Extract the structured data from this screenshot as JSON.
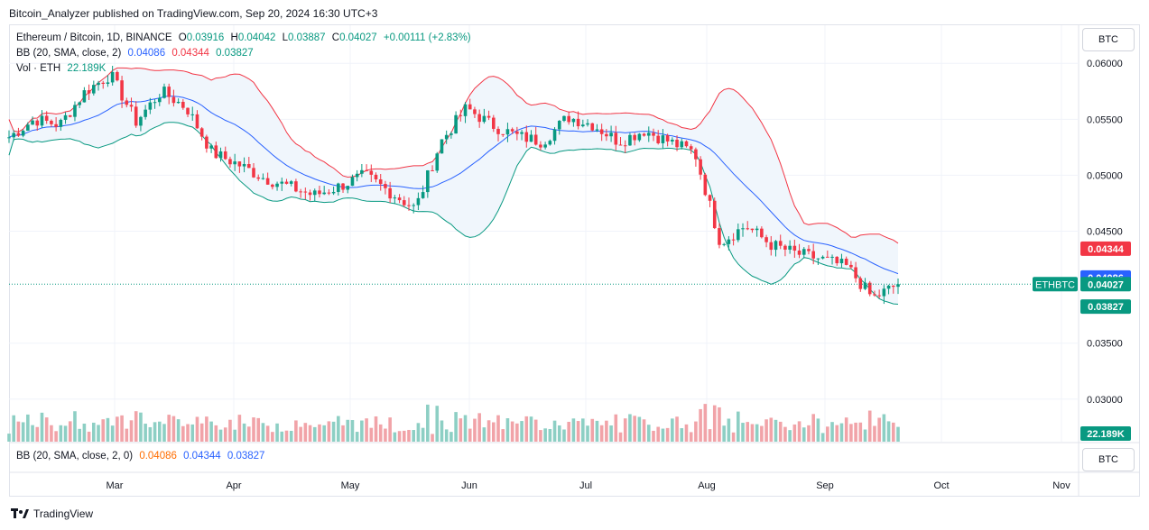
{
  "header": {
    "published": "Bitcoin_Analyzer published on TradingView.com, Sep 20, 2024 16:30 UTC+3"
  },
  "legend": {
    "symbol": "Ethereum / Bitcoin, 1D, BINANCE",
    "o_label": "O",
    "o": "0.03916",
    "h_label": "H",
    "h": "0.04042",
    "l_label": "L",
    "l": "0.03887",
    "c_label": "C",
    "c": "0.04027",
    "change": "+0.00111 (+2.83%)",
    "bb_label": "BB (20, SMA, close, 2)",
    "bb_basis": "0.04086",
    "bb_upper": "0.04344",
    "bb_lower": "0.03827",
    "vol_label": "Vol · ETH",
    "vol_value": "22.189K"
  },
  "lower_legend": {
    "label": "BB (20, SMA, close, 2, 0)",
    "basis": "0.04086",
    "upper": "0.04344",
    "lower": "0.03827"
  },
  "buttons": {
    "currency_top": "BTC",
    "currency_bottom": "BTC"
  },
  "footer": {
    "brand": "TradingView"
  },
  "colors": {
    "up": "#089981",
    "down": "#f23645",
    "basis": "#2962ff",
    "upper": "#f23645",
    "lower": "#089981",
    "band_fill": "#f0f6fc",
    "vol_up": "#8dcfc4",
    "vol_down": "#f1a3a8"
  },
  "chart_data": {
    "type": "candlestick",
    "title": "Ethereum / Bitcoin, 1D, BINANCE",
    "y_ticks": [
      "0.06000",
      "0.05500",
      "0.05000",
      "0.04500",
      "0.03500",
      "0.03000"
    ],
    "ylim": [
      0.0262,
      0.0634
    ],
    "x_ticks": [
      "Mar",
      "Apr",
      "May",
      "Jun",
      "Jul",
      "Aug",
      "Sep",
      "Oct",
      "Nov"
    ],
    "price_labels": {
      "upper": "0.04344",
      "basis": "0.04086",
      "last_symbol": "ETHBTC",
      "last": "0.04027",
      "lower": "0.03827",
      "volume": "22.189K"
    },
    "close_series": [
      {
        "date": "Feb 05",
        "close": 0.0534
      },
      {
        "date": "Feb 12",
        "close": 0.055
      },
      {
        "date": "Feb 19",
        "close": 0.0545
      },
      {
        "date": "Feb 26",
        "close": 0.0575
      },
      {
        "date": "Mar 04",
        "close": 0.059
      },
      {
        "date": "Mar 08",
        "close": 0.0548
      },
      {
        "date": "Mar 12",
        "close": 0.0575
      },
      {
        "date": "Mar 18",
        "close": 0.056
      },
      {
        "date": "Mar 25",
        "close": 0.052
      },
      {
        "date": "Apr 01",
        "close": 0.051
      },
      {
        "date": "Apr 08",
        "close": 0.0498
      },
      {
        "date": "Apr 15",
        "close": 0.049
      },
      {
        "date": "Apr 22",
        "close": 0.0482
      },
      {
        "date": "Apr 29",
        "close": 0.049
      },
      {
        "date": "May 06",
        "close": 0.05
      },
      {
        "date": "May 13",
        "close": 0.0485
      },
      {
        "date": "May 20",
        "close": 0.047
      },
      {
        "date": "May 23",
        "close": 0.053
      },
      {
        "date": "May 27",
        "close": 0.056
      },
      {
        "date": "Jun 03",
        "close": 0.0545
      },
      {
        "date": "Jun 10",
        "close": 0.0535
      },
      {
        "date": "Jun 17",
        "close": 0.053
      },
      {
        "date": "Jun 24",
        "close": 0.0552
      },
      {
        "date": "Jul 01",
        "close": 0.0545
      },
      {
        "date": "Jul 08",
        "close": 0.053
      },
      {
        "date": "Jul 15",
        "close": 0.054
      },
      {
        "date": "Jul 22",
        "close": 0.053
      },
      {
        "date": "Jul 29",
        "close": 0.052
      },
      {
        "date": "Aug 05",
        "close": 0.044
      },
      {
        "date": "Aug 12",
        "close": 0.0455
      },
      {
        "date": "Aug 19",
        "close": 0.0438
      },
      {
        "date": "Aug 26",
        "close": 0.043
      },
      {
        "date": "Sep 02",
        "close": 0.0425
      },
      {
        "date": "Sep 09",
        "close": 0.0418
      },
      {
        "date": "Sep 16",
        "close": 0.039
      },
      {
        "date": "Sep 20",
        "close": 0.04027
      }
    ]
  }
}
